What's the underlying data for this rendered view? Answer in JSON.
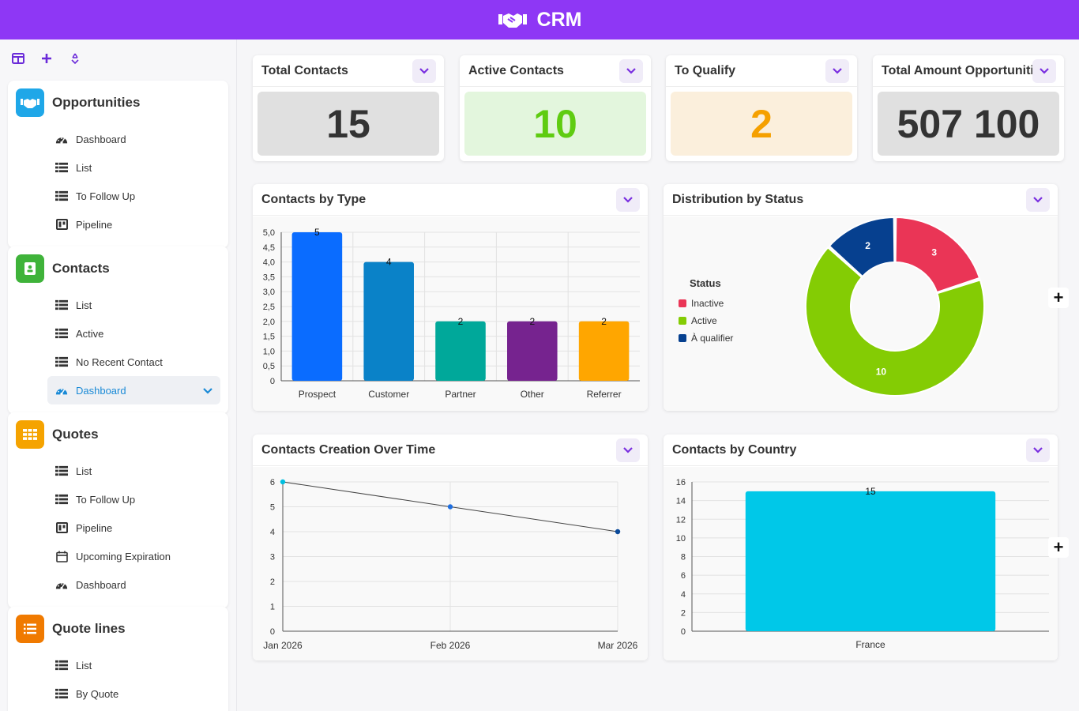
{
  "app": {
    "title": "CRM"
  },
  "sidebar": {
    "sections": [
      {
        "title": "Opportunities",
        "color": "#1fa7e8",
        "icon": "handshake-icon",
        "items": [
          {
            "label": "Dashboard",
            "icon": "dashboard-icon"
          },
          {
            "label": "List",
            "icon": "list-icon"
          },
          {
            "label": "To Follow Up",
            "icon": "list-icon"
          },
          {
            "label": "Pipeline",
            "icon": "pipeline-icon"
          }
        ]
      },
      {
        "title": "Contacts",
        "color": "#3fb33a",
        "icon": "contact-book-icon",
        "items": [
          {
            "label": "List",
            "icon": "list-icon"
          },
          {
            "label": "Active",
            "icon": "list-icon"
          },
          {
            "label": "No Recent Contact",
            "icon": "list-icon"
          },
          {
            "label": "Dashboard",
            "icon": "dashboard-icon",
            "selected": true
          }
        ]
      },
      {
        "title": "Quotes",
        "color": "#f5a300",
        "icon": "grid-icon",
        "items": [
          {
            "label": "List",
            "icon": "list-icon"
          },
          {
            "label": "To Follow Up",
            "icon": "list-icon"
          },
          {
            "label": "Pipeline",
            "icon": "pipeline-icon"
          },
          {
            "label": "Upcoming Expiration",
            "icon": "calendar-icon"
          },
          {
            "label": "Dashboard",
            "icon": "dashboard-icon"
          }
        ]
      },
      {
        "title": "Quote lines",
        "color": "#f07a00",
        "icon": "lines-icon",
        "items": [
          {
            "label": "List",
            "icon": "list-icon"
          },
          {
            "label": "By Quote",
            "icon": "list-icon"
          }
        ]
      }
    ]
  },
  "kpis": [
    {
      "title": "Total Contacts",
      "value": "15",
      "bg": "#e0e0e0",
      "fg": "#333333"
    },
    {
      "title": "Active Contacts",
      "value": "10",
      "bg": "#e3f6dd",
      "fg": "#5fcc11"
    },
    {
      "title": "To Qualify",
      "value": "2",
      "bg": "#fbefdc",
      "fg": "#f5a000"
    },
    {
      "title": "Total Amount Opportunities",
      "value": "507 100",
      "bg": "#e0e0e0",
      "fg": "#333333"
    }
  ],
  "widgets": {
    "by_type": {
      "title": "Contacts by Type"
    },
    "by_status": {
      "title": "Distribution by Status",
      "legend_title": "Status"
    },
    "over_time": {
      "title": "Contacts Creation Over Time"
    },
    "by_country": {
      "title": "Contacts by Country"
    }
  },
  "chart_data": [
    {
      "type": "bar",
      "title": "Contacts by Type",
      "categories": [
        "Prospect",
        "Customer",
        "Partner",
        "Other",
        "Referrer"
      ],
      "values": [
        5,
        4,
        2,
        2,
        2
      ],
      "colors": [
        "#0a6cff",
        "#0a82c8",
        "#00a89a",
        "#76238f",
        "#ffa600"
      ],
      "ylim": [
        0,
        5
      ],
      "yticks": [
        "0",
        "0,5",
        "1,0",
        "1,5",
        "2,0",
        "2,5",
        "3,0",
        "3,5",
        "4,0",
        "4,5",
        "5,0"
      ],
      "data_labels": true,
      "grid": true
    },
    {
      "type": "pie",
      "title": "Distribution by Status",
      "legend_title": "Status",
      "legend_position": "left",
      "labels": [
        "Inactive",
        "Active",
        "À qualifier"
      ],
      "values": [
        3,
        10,
        2
      ],
      "colors": [
        "#ea3556",
        "#84cc04",
        "#06408f"
      ]
    },
    {
      "type": "line",
      "title": "Contacts Creation Over Time",
      "x": [
        "Jan 2026",
        "Feb 2026",
        "Mar 2026"
      ],
      "values": [
        6,
        5,
        4
      ],
      "ylim": [
        0,
        6
      ],
      "yticks": [
        "0",
        "1",
        "2",
        "3",
        "4",
        "5",
        "6"
      ],
      "point_colors": [
        "#00bfe0",
        "#1f6fe0",
        "#0b4a9a"
      ],
      "grid": true
    },
    {
      "type": "bar",
      "title": "Contacts by Country",
      "categories": [
        "France"
      ],
      "values": [
        15
      ],
      "colors": [
        "#00c8e8"
      ],
      "ylim": [
        0,
        16
      ],
      "yticks": [
        "0",
        "2",
        "4",
        "6",
        "8",
        "10",
        "12",
        "14",
        "16"
      ],
      "data_labels": true,
      "grid": true
    }
  ]
}
